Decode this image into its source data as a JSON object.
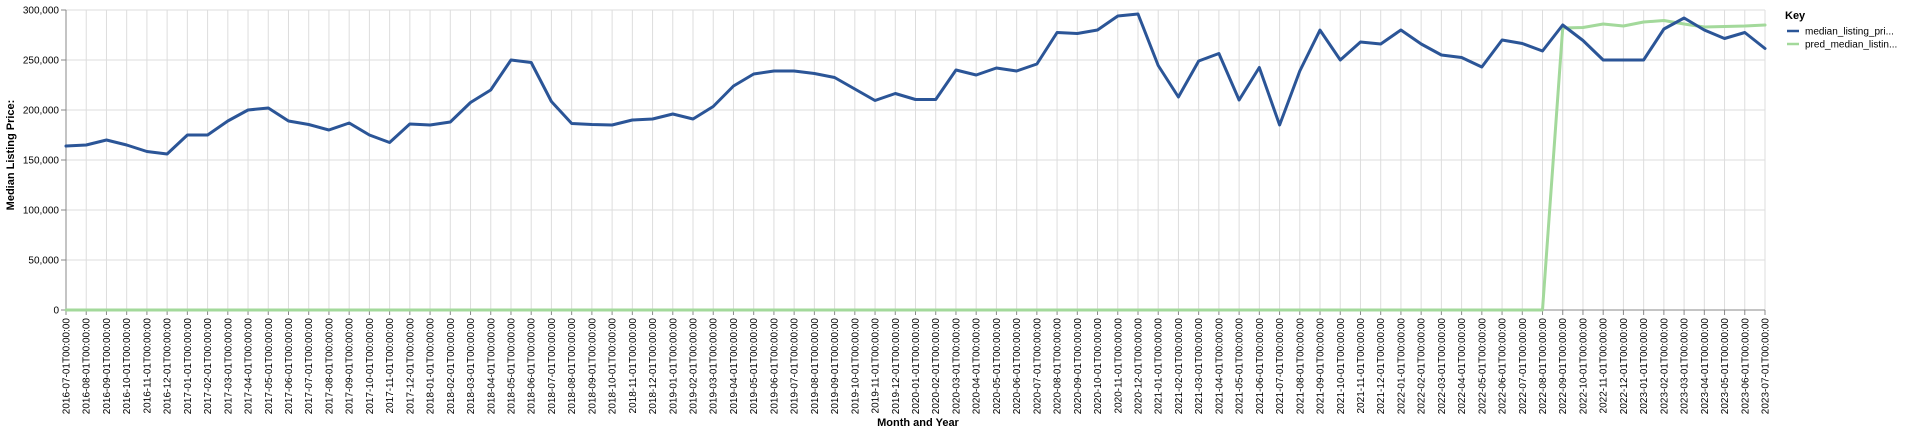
{
  "chart_data": {
    "type": "line",
    "xlabel": "Month and Year",
    "ylabel": "Median Listing Price:",
    "ylim": [
      0,
      300000
    ],
    "yticks": [
      "0",
      "50,000",
      "100,000",
      "150,000",
      "200,000",
      "250,000",
      "300,000"
    ],
    "grid": true,
    "legend": {
      "title": "Key",
      "placement": "right"
    },
    "x": [
      "2016-07-01T00:00:00",
      "2016-08-01T00:00:00",
      "2016-09-01T00:00:00",
      "2016-10-01T00:00:00",
      "2016-11-01T00:00:00",
      "2016-12-01T00:00:00",
      "2017-01-01T00:00:00",
      "2017-02-01T00:00:00",
      "2017-03-01T00:00:00",
      "2017-04-01T00:00:00",
      "2017-05-01T00:00:00",
      "2017-06-01T00:00:00",
      "2017-07-01T00:00:00",
      "2017-08-01T00:00:00",
      "2017-09-01T00:00:00",
      "2017-10-01T00:00:00",
      "2017-11-01T00:00:00",
      "2017-12-01T00:00:00",
      "2018-01-01T00:00:00",
      "2018-02-01T00:00:00",
      "2018-03-01T00:00:00",
      "2018-04-01T00:00:00",
      "2018-05-01T00:00:00",
      "2018-06-01T00:00:00",
      "2018-07-01T00:00:00",
      "2018-08-01T00:00:00",
      "2018-09-01T00:00:00",
      "2018-10-01T00:00:00",
      "2018-11-01T00:00:00",
      "2018-12-01T00:00:00",
      "2019-01-01T00:00:00",
      "2019-02-01T00:00:00",
      "2019-03-01T00:00:00",
      "2019-04-01T00:00:00",
      "2019-05-01T00:00:00",
      "2019-06-01T00:00:00",
      "2019-07-01T00:00:00",
      "2019-08-01T00:00:00",
      "2019-09-01T00:00:00",
      "2019-10-01T00:00:00",
      "2019-11-01T00:00:00",
      "2019-12-01T00:00:00",
      "2020-01-01T00:00:00",
      "2020-02-01T00:00:00",
      "2020-03-01T00:00:00",
      "2020-04-01T00:00:00",
      "2020-05-01T00:00:00",
      "2020-06-01T00:00:00",
      "2020-07-01T00:00:00",
      "2020-08-01T00:00:00",
      "2020-09-01T00:00:00",
      "2020-10-01T00:00:00",
      "2020-11-01T00:00:00",
      "2020-12-01T00:00:00",
      "2021-01-01T00:00:00",
      "2021-02-01T00:00:00",
      "2021-03-01T00:00:00",
      "2021-04-01T00:00:00",
      "2021-05-01T00:00:00",
      "2021-06-01T00:00:00",
      "2021-07-01T00:00:00",
      "2021-08-01T00:00:00",
      "2021-09-01T00:00:00",
      "2021-10-01T00:00:00",
      "2021-11-01T00:00:00",
      "2021-12-01T00:00:00",
      "2022-01-01T00:00:00",
      "2022-02-01T00:00:00",
      "2022-03-01T00:00:00",
      "2022-04-01T00:00:00",
      "2022-05-01T00:00:00",
      "2022-06-01T00:00:00",
      "2022-07-01T00:00:00",
      "2022-08-01T00:00:00",
      "2022-09-01T00:00:00",
      "2022-10-01T00:00:00",
      "2022-11-01T00:00:00",
      "2022-12-01T00:00:00",
      "2023-01-01T00:00:00",
      "2023-02-01T00:00:00",
      "2023-03-01T00:00:00",
      "2023-04-01T00:00:00",
      "2023-05-01T00:00:00",
      "2023-06-01T00:00:00",
      "2023-07-01T00:00:00"
    ],
    "series": [
      {
        "name": "median_listing_pri...",
        "color": "#2b5597",
        "values": [
          164000,
          165000,
          170000,
          165000,
          158500,
          156000,
          175000,
          175000,
          189000,
          200000,
          202000,
          189000,
          185500,
          180000,
          187000,
          175000,
          167500,
          186000,
          185000,
          188000,
          207500,
          220000,
          250000,
          247500,
          208500,
          186500,
          185500,
          185000,
          190000,
          191000,
          196000,
          191000,
          203500,
          224000,
          236000,
          239000,
          239000,
          236500,
          232500,
          221000,
          209500,
          216500,
          210500,
          210500,
          240000,
          235000,
          242000,
          239000,
          246000,
          277500,
          276500,
          280000,
          294000,
          296000,
          244500,
          213000,
          249000,
          256500,
          210000,
          242500,
          185000,
          239000,
          279900,
          250000,
          268000,
          266000,
          280000,
          266000,
          255000,
          252500,
          243000,
          270000,
          266500,
          259000,
          284999,
          269500,
          250000,
          250000,
          250000,
          281000,
          292000,
          280000,
          271500,
          277500,
          261500
        ]
      },
      {
        "name": "pred_median_listin...",
        "color": "#a3d99b",
        "values": [
          0,
          0,
          0,
          0,
          0,
          0,
          0,
          0,
          0,
          0,
          0,
          0,
          0,
          0,
          0,
          0,
          0,
          0,
          0,
          0,
          0,
          0,
          0,
          0,
          0,
          0,
          0,
          0,
          0,
          0,
          0,
          0,
          0,
          0,
          0,
          0,
          0,
          0,
          0,
          0,
          0,
          0,
          0,
          0,
          0,
          0,
          0,
          0,
          0,
          0,
          0,
          0,
          0,
          0,
          0,
          0,
          0,
          0,
          0,
          0,
          0,
          0,
          0,
          0,
          0,
          0,
          0,
          0,
          0,
          0,
          0,
          0,
          0,
          0,
          282000,
          282500,
          286000,
          284000,
          288000,
          289500,
          286000,
          283000,
          283500,
          284000,
          285000
        ]
      }
    ]
  }
}
